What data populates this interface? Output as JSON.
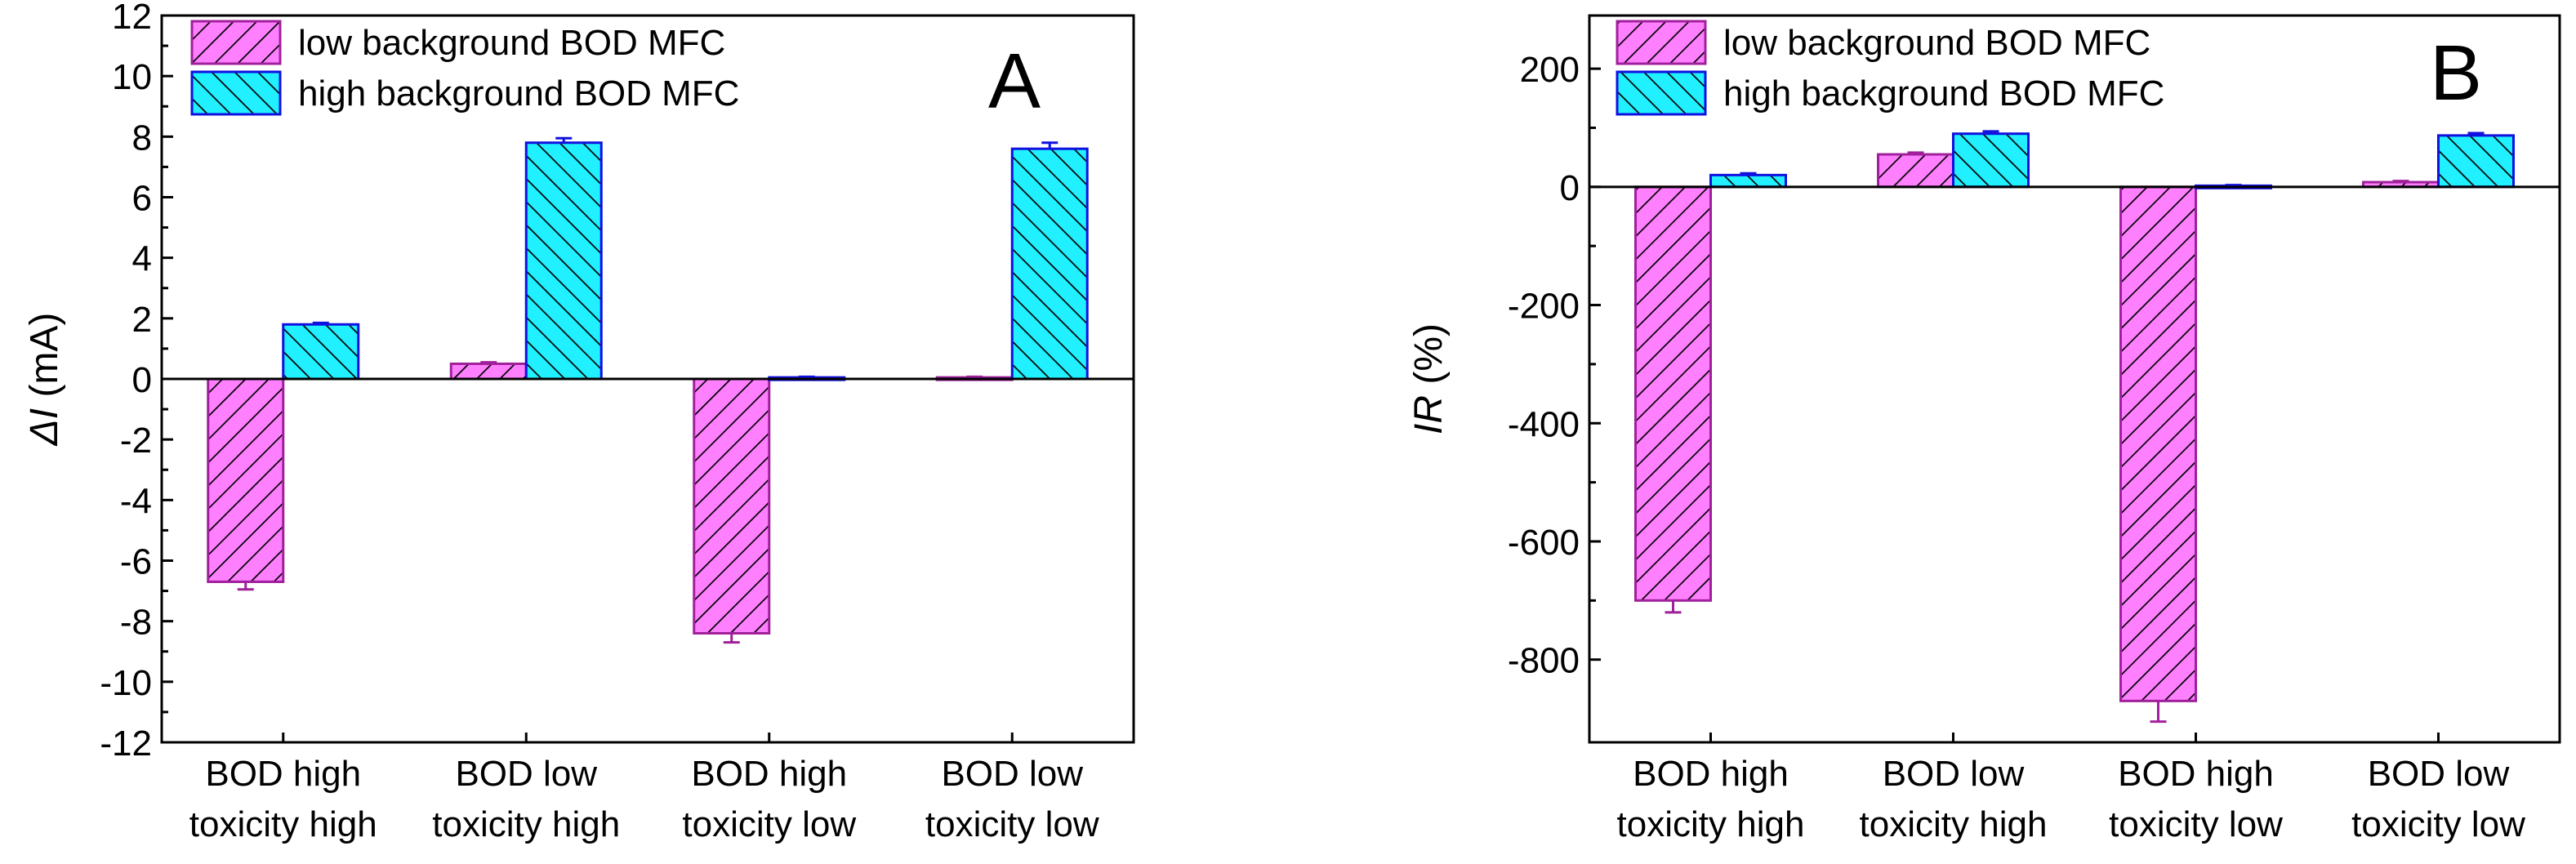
{
  "colors": {
    "low_fill": "#ff80ff",
    "low_stroke": "#a0209c",
    "high_fill": "#20f0ff",
    "high_stroke": "#1010e0",
    "errorbar_low": "#a0209c",
    "errorbar_high": "#1010e0"
  },
  "chart_data": [
    {
      "type": "bar",
      "panel_label": "A",
      "title": "",
      "xlabel": "",
      "ylabel_italic": "ΔI",
      "ylabel_rest": " (mA)",
      "ylim": [
        -12,
        12
      ],
      "yticks": [
        -12,
        -10,
        -8,
        -6,
        -4,
        -2,
        0,
        2,
        4,
        6,
        8,
        10,
        12
      ],
      "categories": [
        [
          "BOD high",
          "toxicity high"
        ],
        [
          "BOD low",
          "toxicity high"
        ],
        [
          "BOD high",
          "toxicity low"
        ],
        [
          "BOD low",
          "toxicity low"
        ]
      ],
      "series": [
        {
          "name": "low background BOD MFC",
          "values": [
            -6.7,
            0.5,
            -8.4,
            0.05
          ],
          "errors": [
            0.25,
            0.05,
            0.3,
            0.02
          ]
        },
        {
          "name": "high background BOD MFC",
          "values": [
            1.8,
            7.8,
            0.05,
            7.6
          ],
          "errors": [
            0.05,
            0.15,
            0.02,
            0.2
          ]
        }
      ]
    },
    {
      "type": "bar",
      "panel_label": "B",
      "title": "",
      "xlabel": "",
      "ylabel_italic": "IR",
      "ylabel_rest": " (%)",
      "ylim": [
        -940,
        290
      ],
      "yticks": [
        -800,
        -600,
        -400,
        -200,
        0,
        200
      ],
      "categories": [
        [
          "BOD high",
          "toxicity high"
        ],
        [
          "BOD low",
          "toxicity high"
        ],
        [
          "BOD high",
          "toxicity low"
        ],
        [
          "BOD low",
          "toxicity low"
        ]
      ],
      "series": [
        {
          "name": "low background BOD MFC",
          "values": [
            -700,
            55,
            -870,
            8
          ],
          "errors": [
            20,
            3,
            35,
            2
          ]
        },
        {
          "name": "high background BOD MFC",
          "values": [
            20,
            90,
            2,
            87
          ],
          "errors": [
            3,
            4,
            1,
            4
          ]
        }
      ]
    }
  ]
}
